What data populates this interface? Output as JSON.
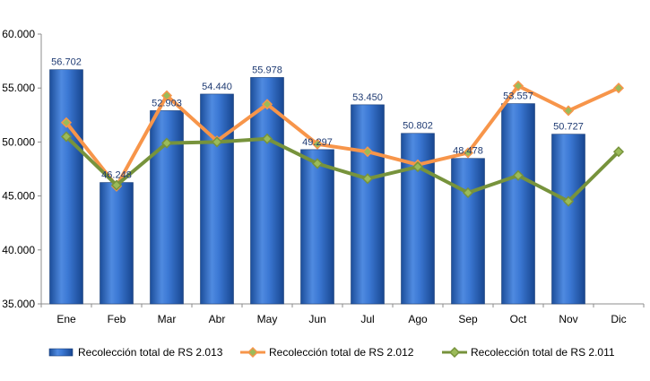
{
  "chart_data": {
    "type": "bar",
    "categories": [
      "Ene",
      "Feb",
      "Mar",
      "Abr",
      "May",
      "Jun",
      "Jul",
      "Ago",
      "Sep",
      "Oct",
      "Nov",
      "Dic"
    ],
    "ylim": [
      35000,
      60000
    ],
    "yticks": [
      35000,
      40000,
      45000,
      50000,
      55000,
      60000
    ],
    "ytick_labels": [
      "35.000",
      "40.000",
      "45.000",
      "50.000",
      "55.000",
      "60.000"
    ],
    "grid": false,
    "legend_position": "bottom",
    "series": [
      {
        "name": "Recolección total de RS 2.013",
        "type": "bar",
        "color": "#2f6cc1",
        "values": [
          56702,
          46248,
          52903,
          54440,
          55978,
          49297,
          53450,
          50802,
          48478,
          53557,
          50727,
          null
        ],
        "labels": [
          "56.702",
          "46.248",
          "52.903",
          "54.440",
          "55.978",
          "49.297",
          "53.450",
          "50.802",
          "48.478",
          "53.557",
          "50.727",
          ""
        ]
      },
      {
        "name": "Recolección total de RS 2.012",
        "type": "line",
        "color": "#f7954a",
        "values": [
          51800,
          45900,
          54300,
          50100,
          53500,
          49800,
          49100,
          47900,
          49000,
          55200,
          52900,
          55000
        ]
      },
      {
        "name": "Recolección total de RS 2.011",
        "type": "line",
        "color": "#77933c",
        "values": [
          50500,
          46000,
          49900,
          50000,
          50300,
          48000,
          46600,
          47700,
          45300,
          46900,
          44500,
          49100
        ]
      }
    ]
  }
}
